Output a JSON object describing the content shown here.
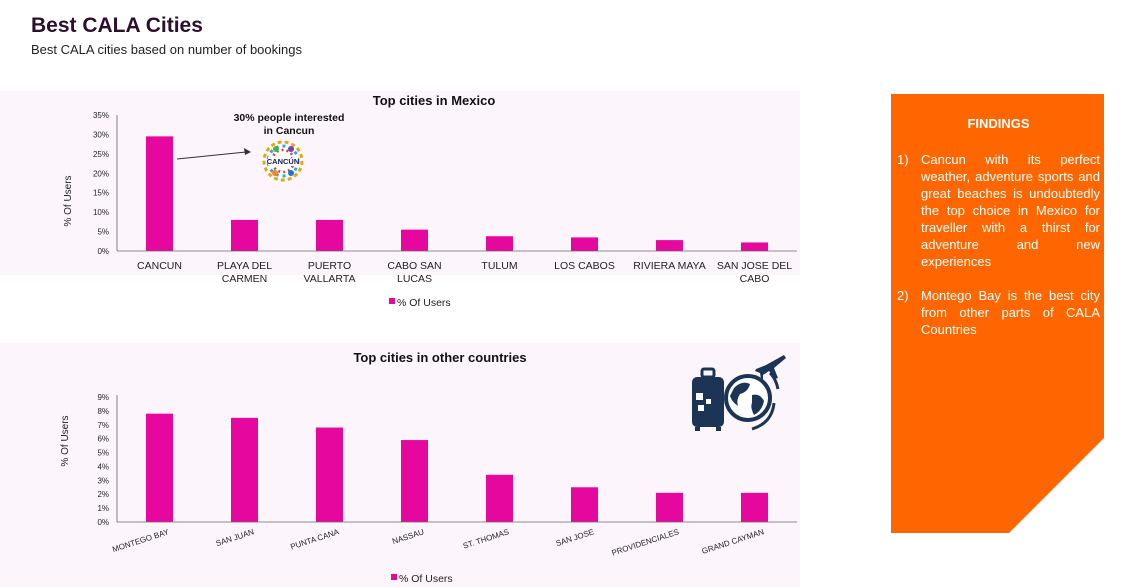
{
  "page": {
    "title": "Best CALA Cities",
    "subtitle": "Best CALA cities based on number of bookings"
  },
  "colors": {
    "bar": "#e6079e",
    "findings_bg": "#ff6600",
    "panel_bg": "#fcf5fc"
  },
  "chart_data": [
    {
      "type": "bar",
      "title": "Top cities in Mexico",
      "ylabel": "% Of Users",
      "xlabel": "",
      "ylim": [
        0,
        35
      ],
      "yticks": [
        "0%",
        "5%",
        "10%",
        "15%",
        "20%",
        "25%",
        "30%",
        "35%"
      ],
      "grid": false,
      "legend": "bottom",
      "categories": [
        "CANCUN",
        "PLAYA DEL CARMEN",
        "PUERTO VALLARTA",
        "CABO SAN LUCAS",
        "TULUM",
        "LOS CABOS",
        "RIVIERA MAYA",
        "SAN JOSE DEL CABO"
      ],
      "category_lines": [
        [
          "CANCUN"
        ],
        [
          "PLAYA DEL",
          "CARMEN"
        ],
        [
          "PUERTO",
          "VALLARTA"
        ],
        [
          "CABO SAN",
          "LUCAS"
        ],
        [
          "TULUM"
        ],
        [
          "LOS CABOS"
        ],
        [
          "RIVIERA MAYA"
        ],
        [
          "SAN JOSE DEL",
          "CABO"
        ]
      ],
      "series": [
        {
          "name": "% Of Users",
          "values": [
            29.5,
            8,
            8,
            5.5,
            3.8,
            3.5,
            2.8,
            2.2
          ]
        }
      ],
      "annotation": {
        "lines": [
          "30% people interested",
          "in Cancun"
        ]
      },
      "logo_text": "CANCÚN"
    },
    {
      "type": "bar",
      "title": "Top cities in other countries",
      "ylabel": "% Of Users",
      "xlabel": "",
      "ylim": [
        0,
        9
      ],
      "yticks": [
        "0%",
        "1%",
        "2%",
        "3%",
        "4%",
        "5%",
        "6%",
        "7%",
        "8%",
        "9%"
      ],
      "grid": false,
      "legend": "bottom",
      "categories": [
        "MONTEGO BAY",
        "SAN JUAN",
        "PUNTA CANA",
        "NASSAU",
        "ST. THOMAS",
        "SAN JOSE",
        "PROVIDENCIALES",
        "GRAND CAYMAN"
      ],
      "series": [
        {
          "name": "% Of Users",
          "values": [
            7.8,
            7.5,
            6.8,
            5.9,
            3.4,
            2.5,
            2.1,
            2.1
          ]
        }
      ]
    }
  ],
  "findings": {
    "title": "FINDINGS",
    "items": [
      {
        "num": "1)",
        "text": "Cancun with its perfect weather, adventure sports and great beaches is undoubtedly the top choice in Mexico for traveller with a thirst for adventure and new experiences"
      },
      {
        "num": "2)",
        "text": "Montego Bay is the best city from other parts of CALA Countries"
      }
    ]
  }
}
